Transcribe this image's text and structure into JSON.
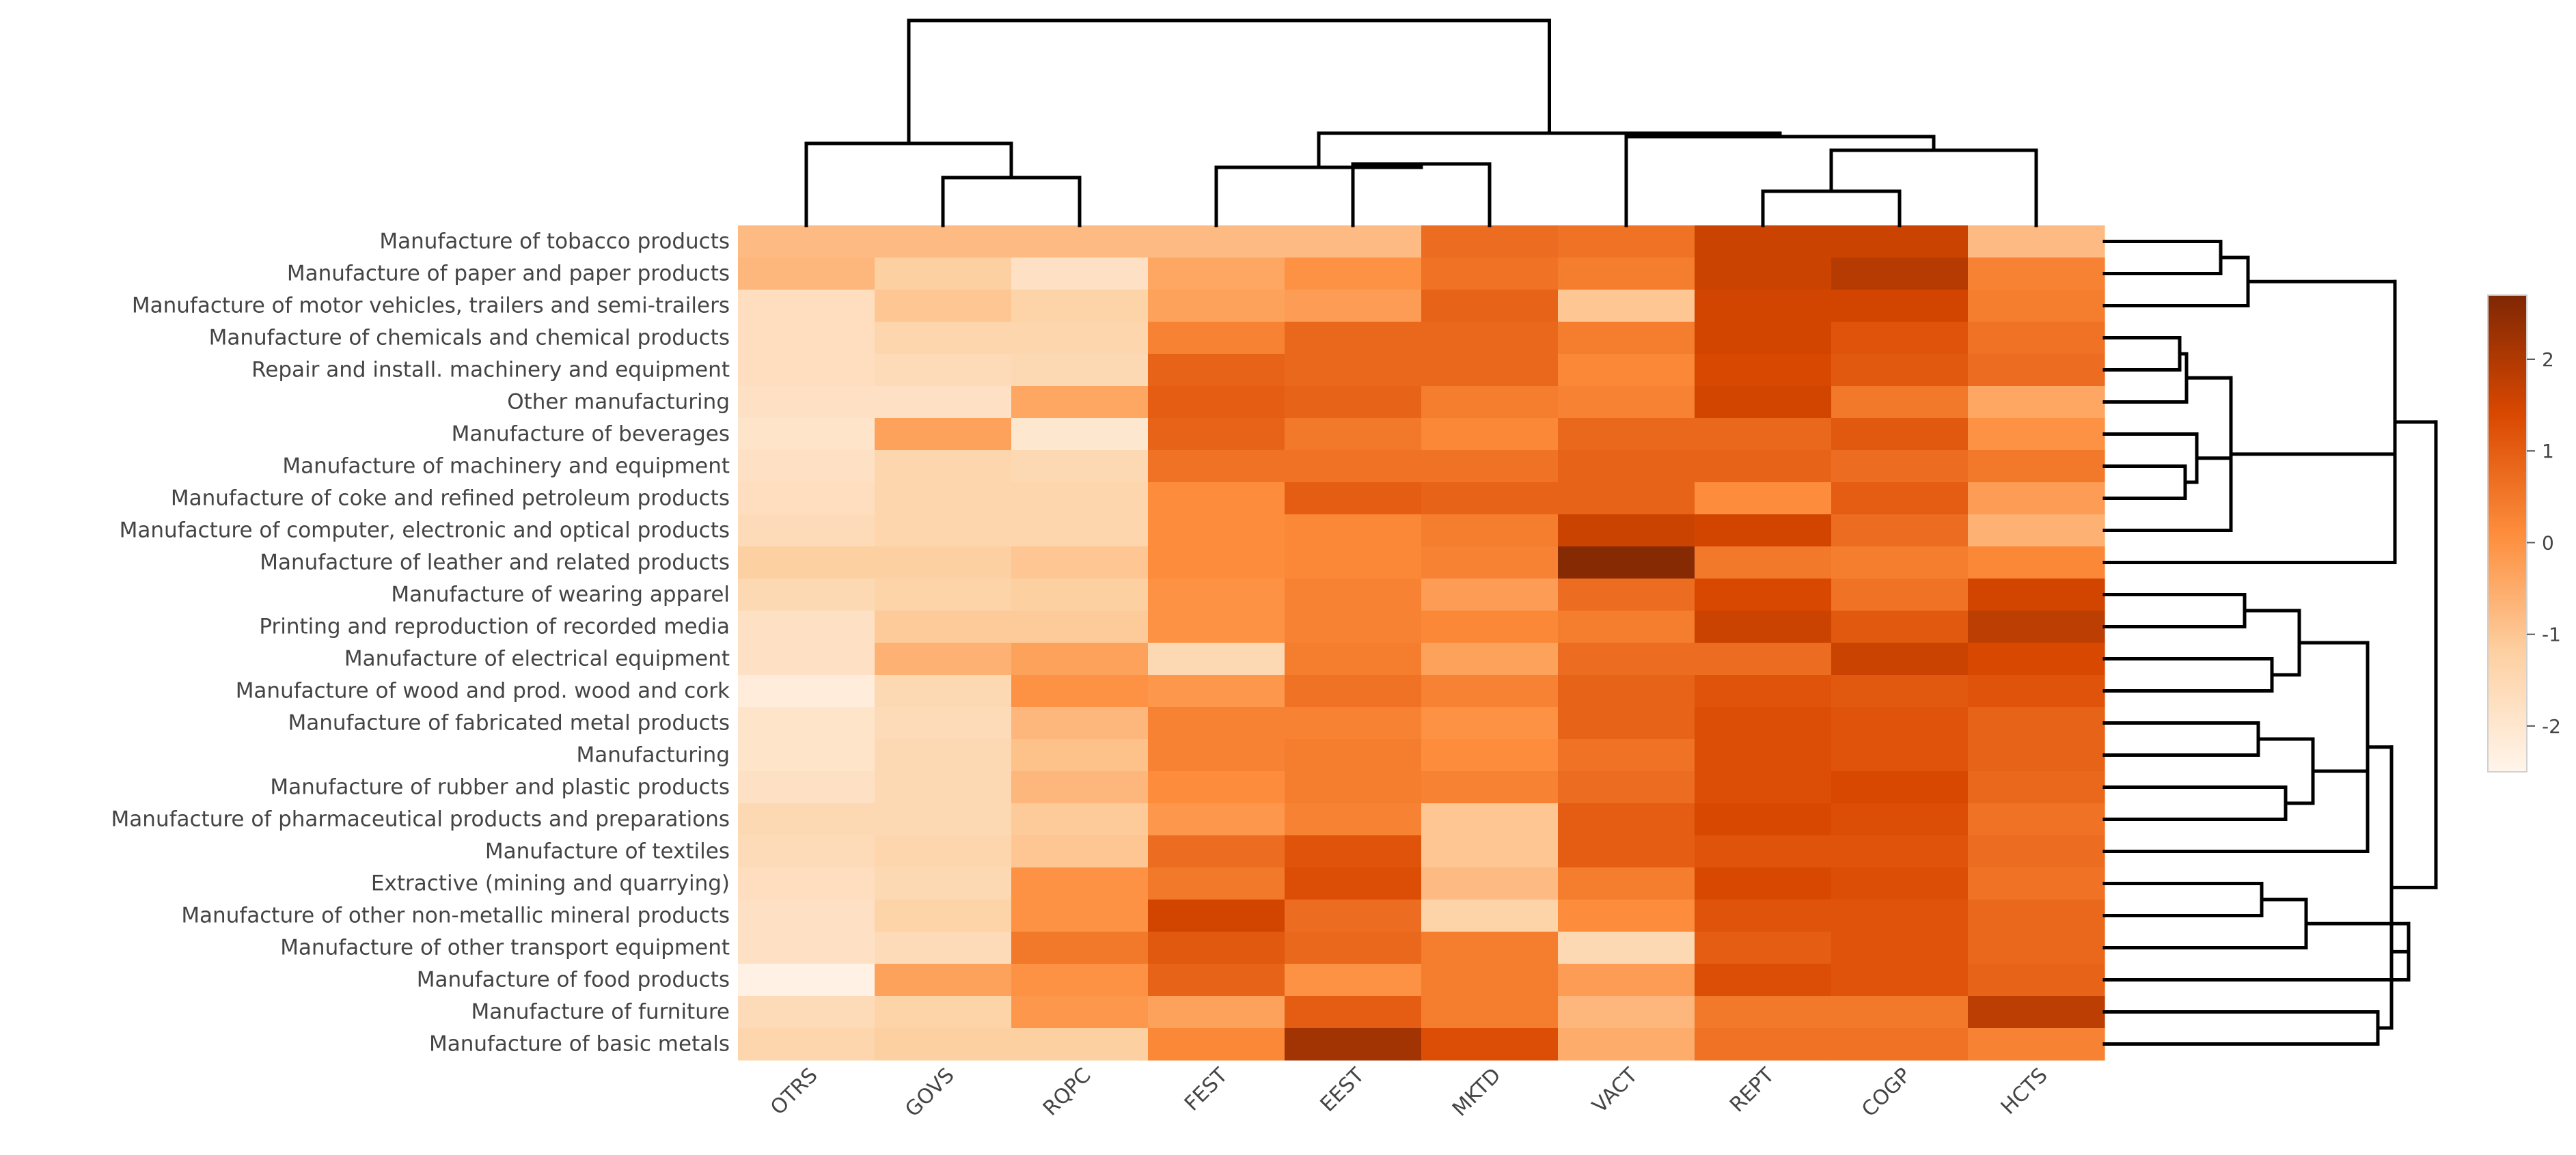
{
  "chart_data": {
    "type": "heatmap",
    "title": "",
    "columns": [
      "OTRS",
      "GOVS",
      "RQPC",
      "FEST",
      "EEST",
      "MKTD",
      "VACT",
      "REPT",
      "COGP",
      "HCTS"
    ],
    "rows": [
      "Manufacture of tobacco products",
      "Manufacture of paper and paper products",
      "Manufacture of motor vehicles, trailers and semi-trailers",
      "Manufacture of chemicals and chemical products",
      "Repair and install. machinery and equipment",
      "Other manufacturing",
      "Manufacture of beverages",
      "Manufacture of machinery and equipment",
      "Manufacture of coke and refined petroleum products",
      "Manufacture of computer, electronic and optical products",
      "Manufacture of leather and related products ",
      "Manufacture of wearing apparel",
      "Printing and reproduction of recorded media",
      "Manufacture of electrical equipment",
      "Manufacture of wood and prod. wood and cork",
      "Manufacture of fabricated metal products",
      "Manufacturing ",
      "Manufacture of rubber and plastic products",
      "Manufacture of pharmaceutical products and preparations",
      "Manufacture of textiles",
      "Extractive (mining and quarrying)",
      "Manufacture of other non-metallic mineral products",
      "Manufacture of other transport equipment",
      "Manufacture of food products",
      "Manufacture of furniture",
      "Manufacture of basic metals"
    ],
    "values": [
      [
        -0.8,
        -0.8,
        -0.8,
        -0.8,
        -0.8,
        0.7,
        0.6,
        1.6,
        1.6,
        -0.8
      ],
      [
        -0.7,
        -1.2,
        -1.8,
        -0.4,
        0.0,
        0.6,
        0.4,
        1.6,
        1.9,
        0.3
      ],
      [
        -1.7,
        -1.0,
        -1.3,
        -0.3,
        -0.2,
        0.9,
        -1.0,
        1.5,
        1.5,
        0.4
      ],
      [
        -1.7,
        -1.4,
        -1.4,
        0.3,
        0.8,
        0.8,
        0.4,
        1.5,
        1.2,
        0.6
      ],
      [
        -1.7,
        -1.6,
        -1.5,
        0.9,
        0.8,
        0.8,
        0.2,
        1.4,
        1.1,
        0.7
      ],
      [
        -1.8,
        -1.8,
        -0.4,
        1.0,
        0.9,
        0.4,
        0.3,
        1.5,
        0.5,
        -0.4
      ],
      [
        -1.9,
        -0.3,
        -2.0,
        0.9,
        0.5,
        0.2,
        0.8,
        0.8,
        1.1,
        0.0
      ],
      [
        -1.8,
        -1.4,
        -1.5,
        0.6,
        0.6,
        0.6,
        0.9,
        0.9,
        0.7,
        0.5
      ],
      [
        -1.7,
        -1.4,
        -1.4,
        0.1,
        1.0,
        0.9,
        0.9,
        0.1,
        1.0,
        -0.2
      ],
      [
        -1.6,
        -1.4,
        -1.4,
        0.1,
        0.2,
        0.4,
        1.6,
        1.5,
        0.7,
        -0.6
      ],
      [
        -1.2,
        -1.2,
        -1.0,
        0.1,
        0.2,
        0.3,
        2.6,
        0.5,
        0.4,
        0.2
      ],
      [
        -1.5,
        -1.3,
        -1.2,
        0.0,
        0.3,
        -0.2,
        0.7,
        1.4,
        0.6,
        1.5
      ],
      [
        -1.8,
        -1.1,
        -1.1,
        0.0,
        0.3,
        0.2,
        0.4,
        1.6,
        1.1,
        1.8
      ],
      [
        -1.8,
        -0.6,
        -0.3,
        -1.5,
        0.4,
        -0.3,
        0.7,
        0.7,
        1.6,
        1.4
      ],
      [
        -2.2,
        -1.5,
        0.0,
        -0.1,
        0.6,
        0.3,
        0.9,
        1.2,
        1.1,
        1.2
      ],
      [
        -1.9,
        -1.6,
        -0.7,
        0.3,
        0.3,
        0.0,
        0.9,
        1.3,
        1.2,
        0.9
      ],
      [
        -1.9,
        -1.5,
        -0.9,
        0.3,
        0.4,
        0.1,
        0.6,
        1.3,
        1.2,
        0.9
      ],
      [
        -1.8,
        -1.5,
        -0.7,
        0.1,
        0.4,
        0.3,
        0.7,
        1.3,
        1.4,
        0.8
      ],
      [
        -1.5,
        -1.5,
        -1.1,
        -0.1,
        0.3,
        -1.0,
        1.0,
        1.4,
        1.3,
        0.6
      ],
      [
        -1.6,
        -1.4,
        -1.0,
        0.7,
        1.2,
        -1.0,
        1.0,
        1.2,
        1.2,
        0.7
      ],
      [
        -1.7,
        -1.5,
        0.0,
        0.5,
        1.3,
        -0.8,
        0.4,
        1.4,
        1.3,
        0.6
      ],
      [
        -1.8,
        -1.3,
        0.0,
        1.5,
        0.7,
        -1.3,
        0.1,
        1.2,
        1.2,
        0.8
      ],
      [
        -1.8,
        -1.6,
        0.5,
        1.1,
        0.8,
        0.4,
        -1.5,
        1.0,
        1.2,
        0.8
      ],
      [
        -2.4,
        -0.3,
        0.0,
        0.9,
        0.0,
        0.4,
        -0.2,
        1.3,
        1.2,
        0.9
      ],
      [
        -1.6,
        -1.3,
        -0.1,
        -0.3,
        1.0,
        0.4,
        -0.7,
        0.5,
        0.5,
        1.8
      ],
      [
        -1.4,
        -1.2,
        -1.2,
        0.2,
        2.2,
        1.3,
        -0.5,
        0.6,
        0.6,
        0.3
      ]
    ],
    "colorbar": {
      "min": -2.5,
      "max": 2.7,
      "ticks": [
        -2,
        -1,
        0,
        1,
        2
      ]
    },
    "colors": {
      "low": "#fff2e6",
      "mid1": "#fdbf8d",
      "mid2": "#f9842f",
      "mid3": "#e05409",
      "high": "#7f2704"
    },
    "axis_labels": {
      "x": "",
      "y": ""
    },
    "col_dendrogram": "((OTRS,(GOVS,RQPC)),((FEST,(EEST,MKTD)),(VACT,((REPT,COGP),HCTS))))",
    "row_dendrogram": "((((tobacco,paper),motor),(((chemicals,repair),other),(beverages,(machinery,coke)),computer),leather),((((wearing,printing),(electrical,wood)),((fabricated,manufacturing),(rubber,pharma)),textiles),(((extractive,nonmetallic),transport),food),(furniture,basicmetals)))"
  }
}
